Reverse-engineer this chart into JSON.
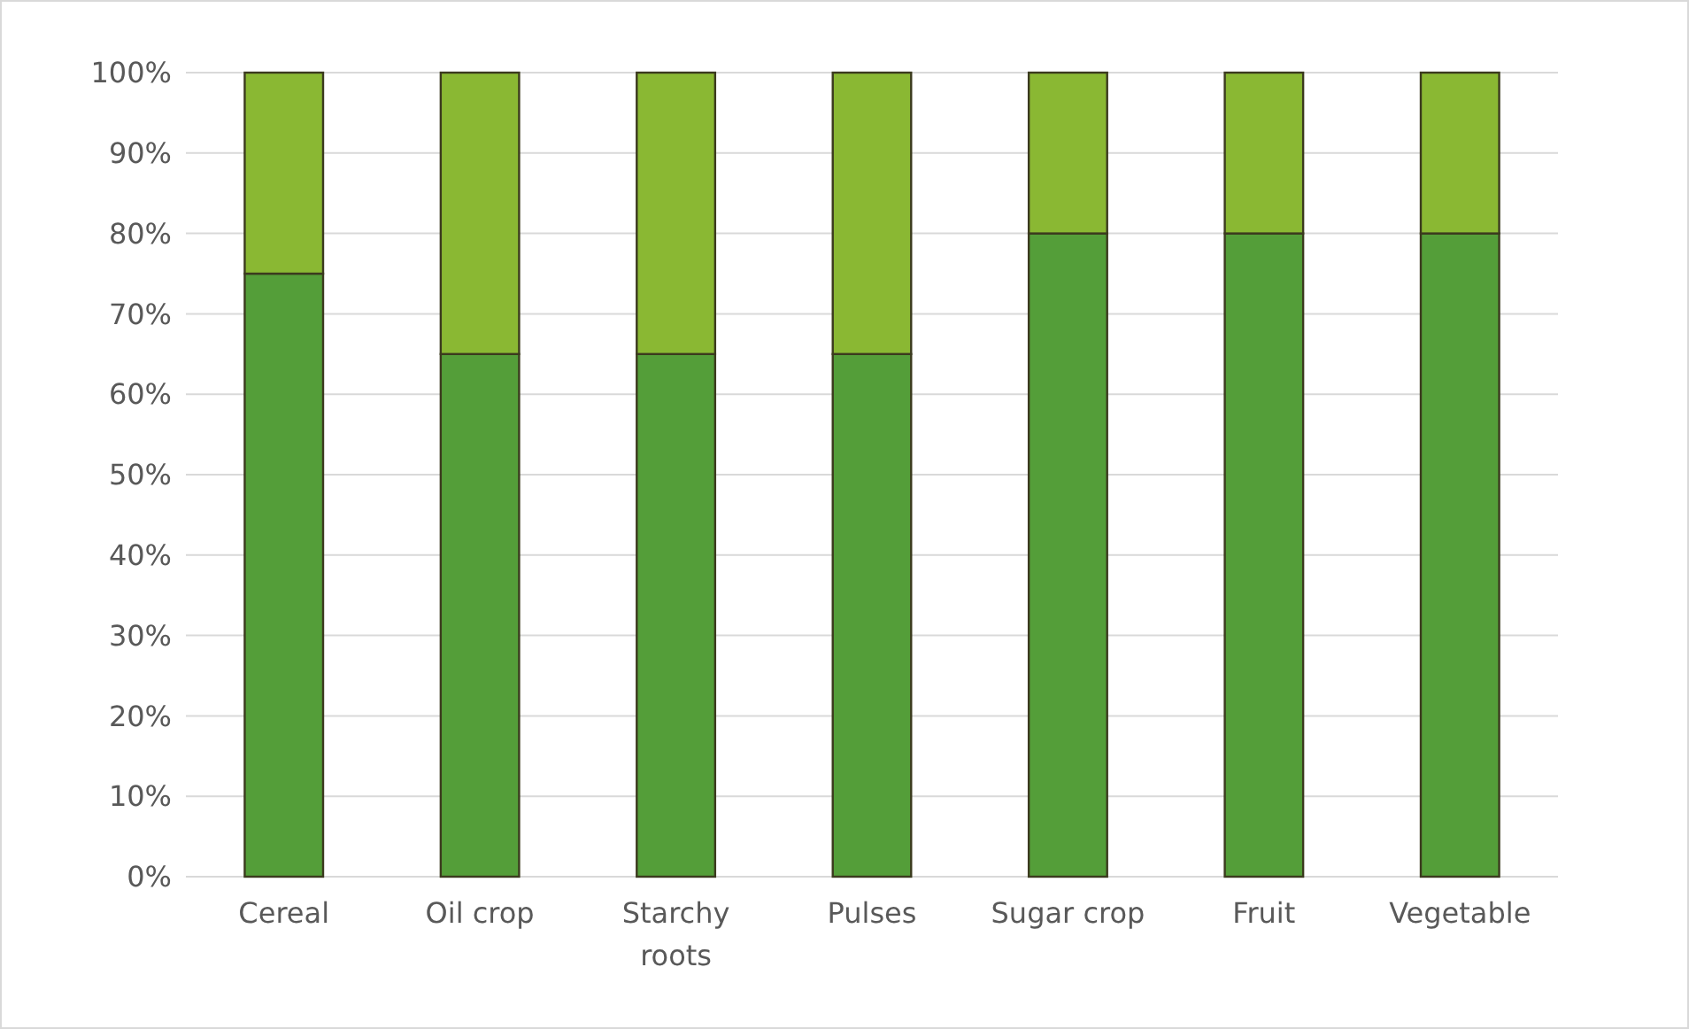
{
  "chart_data": {
    "type": "bar",
    "stacked": true,
    "categories": [
      "Cereal",
      "Oil crop",
      "Starchy roots",
      "Pulses",
      "Sugar crop",
      "Fruit",
      "Vegetable"
    ],
    "series": [
      {
        "color": "#549e39",
        "values": [
          75,
          65,
          65,
          65,
          80,
          80,
          80
        ]
      },
      {
        "color": "#8ab833",
        "values": [
          25,
          35,
          35,
          35,
          20,
          20,
          20
        ]
      }
    ],
    "ylim": [
      0,
      100
    ],
    "yticks": [
      {
        "value": 0,
        "label": "0%"
      },
      {
        "value": 10,
        "label": "10%"
      },
      {
        "value": 20,
        "label": "20%"
      },
      {
        "value": 30,
        "label": "30%"
      },
      {
        "value": 40,
        "label": "40%"
      },
      {
        "value": 50,
        "label": "50%"
      },
      {
        "value": 60,
        "label": "60%"
      },
      {
        "value": 70,
        "label": "70%"
      },
      {
        "value": 80,
        "label": "80%"
      },
      {
        "value": 90,
        "label": "90%"
      },
      {
        "value": 100,
        "label": "100%"
      }
    ],
    "grid": "y"
  }
}
